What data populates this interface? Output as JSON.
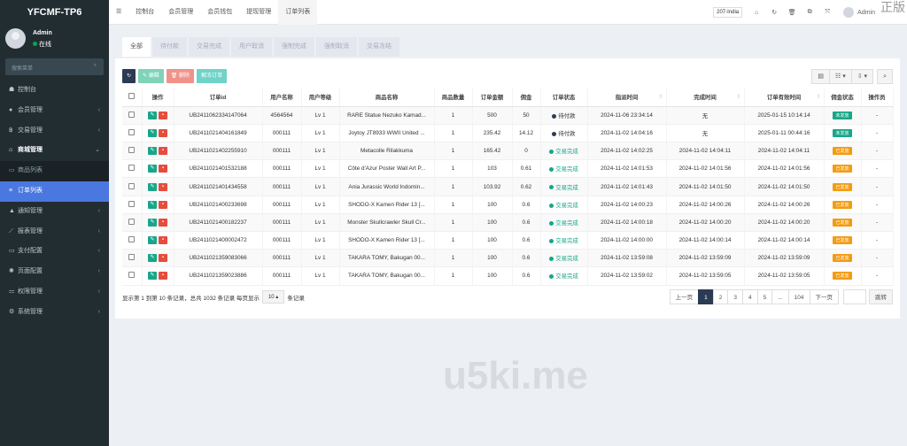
{
  "app": {
    "title": "YFCMF-TP6",
    "user": "Admin",
    "status": "在线",
    "search_placeholder": "搜索菜单"
  },
  "sidebar": {
    "items": [
      {
        "label": "控制台",
        "icon": "dashboard-icon",
        "arrow": ""
      },
      {
        "label": "会员管理",
        "icon": "users-icon",
        "arrow": "‹"
      },
      {
        "label": "交易管理",
        "icon": "bitcoin-icon",
        "arrow": "‹"
      },
      {
        "label": "商城管理",
        "icon": "home-icon",
        "arrow": "⌄"
      },
      {
        "label": "商品列表",
        "icon": "monitor-icon",
        "arrow": ""
      },
      {
        "label": "订单列表",
        "icon": "list-icon",
        "arrow": ""
      },
      {
        "label": "通知管理",
        "icon": "bell-icon",
        "arrow": "‹"
      },
      {
        "label": "报表管理",
        "icon": "chart-icon",
        "arrow": "‹"
      },
      {
        "label": "支付配置",
        "icon": "credit-card-icon",
        "arrow": "‹"
      },
      {
        "label": "页面配置",
        "icon": "gear-icon",
        "arrow": "‹"
      },
      {
        "label": "权限管理",
        "icon": "sitemap-icon",
        "arrow": "‹"
      },
      {
        "label": "系统管理",
        "icon": "cogs-icon",
        "arrow": "‹"
      }
    ]
  },
  "topbar": {
    "tabs": [
      "控制台",
      "会员管理",
      "会员钱包",
      "提现管理",
      "订单列表"
    ],
    "site": "207-India",
    "user": "Admin"
  },
  "tabs": [
    "全部",
    "待付款",
    "交易完成",
    "用户取消",
    "强制完成",
    "强制取消",
    "交易冻结"
  ],
  "toolbar": {
    "edit": "编辑",
    "delete": "删除",
    "unfreeze": "解冻订单"
  },
  "table": {
    "headers": [
      "操作",
      "订单id",
      "用户名称",
      "用户等级",
      "商品名称",
      "商品数量",
      "订单金额",
      "佣金",
      "订单状态",
      "指派时间",
      "完成时间",
      "订单有效时间",
      "佣金状态",
      "操作员"
    ],
    "rows": [
      [
        "UB2411062334147064",
        "4564564",
        "Lv 1",
        "RARE Statue Nezuko Kamad...",
        "1",
        "500",
        "50",
        "待付款",
        "2024-11-06 23:34:14",
        "无",
        "2025-01-15 10:14:14",
        "未发放",
        "-"
      ],
      [
        "UB2411021404161849",
        "000111",
        "Lv 1",
        "Joytoy JT8933 WWII United ...",
        "1",
        "235.42",
        "14.12",
        "待付款",
        "2024-11-02 14:04:16",
        "无",
        "2025-01-11 00:44:16",
        "未发放",
        "-"
      ],
      [
        "UB2411021402255910",
        "000111",
        "Lv 1",
        "Metacolle Rilakkuma",
        "1",
        "165.42",
        "0",
        "交易完成",
        "2024-11-02 14:02:25",
        "2024-11-02 14:04:11",
        "2024-11-02 14:04:11",
        "已发放",
        "-"
      ],
      [
        "UB2411021401532188",
        "000111",
        "Lv 1",
        "Côte d'Azur Poster Wall Art P...",
        "1",
        "103",
        "0.61",
        "交易完成",
        "2024-11-02 14:01:53",
        "2024-11-02 14:01:56",
        "2024-11-02 14:01:56",
        "已发放",
        "-"
      ],
      [
        "UB2411021401434558",
        "000111",
        "Lv 1",
        "Ania Jurassic World Indomin...",
        "1",
        "103.92",
        "0.62",
        "交易完成",
        "2024-11-02 14:01:43",
        "2024-11-02 14:01:50",
        "2024-11-02 14:01:50",
        "已发放",
        "-"
      ],
      [
        "UB2411021400233698",
        "000111",
        "Lv 1",
        "SHODO-X Kamen Rider 13 [...",
        "1",
        "100",
        "0.6",
        "交易完成",
        "2024-11-02 14:00:23",
        "2024-11-02 14:00:26",
        "2024-11-02 14:00:26",
        "已发放",
        "-"
      ],
      [
        "UB2411021400182237",
        "000111",
        "Lv 1",
        "Monster Skullcrawler Skull Cr...",
        "1",
        "100",
        "0.6",
        "交易完成",
        "2024-11-02 14:00:18",
        "2024-11-02 14:00:20",
        "2024-11-02 14:00:20",
        "已发放",
        "-"
      ],
      [
        "UB2411021400002472",
        "000111",
        "Lv 1",
        "SHODO-X Kamen Rider 13 [...",
        "1",
        "100",
        "0.6",
        "交易完成",
        "2024-11-02 14:00:00",
        "2024-11-02 14:00:14",
        "2024-11-02 14:00:14",
        "已发放",
        "-"
      ],
      [
        "UB2411021359083066",
        "000111",
        "Lv 1",
        "TAKARA TOMY, Bakugan 00...",
        "1",
        "100",
        "0.6",
        "交易完成",
        "2024-11-02 13:59:08",
        "2024-11-02 13:59:09",
        "2024-11-02 13:59:09",
        "已发放",
        "-"
      ],
      [
        "UB2411021359023886",
        "000111",
        "Lv 1",
        "TAKARA TOMY, Bakugan 00...",
        "1",
        "100",
        "0.6",
        "交易完成",
        "2024-11-02 13:59:02",
        "2024-11-02 13:59:05",
        "2024-11-02 13:59:05",
        "已发放",
        "-"
      ]
    ]
  },
  "footer": {
    "summary": "显示第 1 到第 10 条记录，总共 1032 条记录 每页显示",
    "page_size": "10 ▴",
    "suffix": "条记录"
  },
  "pager": {
    "prev": "上一页",
    "pages": [
      "1",
      "2",
      "3",
      "4",
      "5",
      "...",
      "104"
    ],
    "next": "下一页",
    "jump": "跳转"
  },
  "colors": {
    "sidebar": "#222d32",
    "active": "#4a78e0",
    "pending": "#2c3b54",
    "done": "#18a689",
    "unpaid_badge": "#18a689",
    "paid_badge": "#f39c12"
  },
  "watermark": {
    "text": "u5ki.me",
    "corner": "正版"
  }
}
